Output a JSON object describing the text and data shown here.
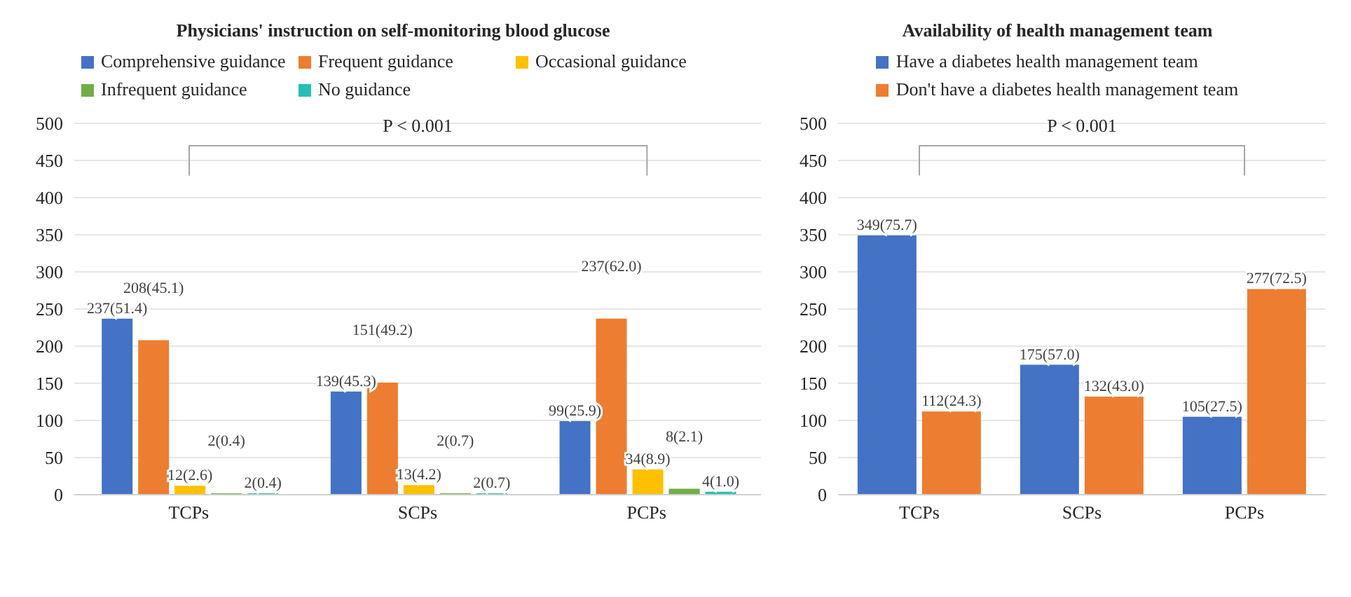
{
  "chart_data": [
    {
      "type": "bar",
      "title": "Physicians' instruction on self-monitoring blood glucose",
      "categories": [
        "TCPs",
        "SCPs",
        "PCPs"
      ],
      "series": [
        {
          "name": "Comprehensive guidance",
          "color": "#4472c4",
          "values": [
            237,
            139,
            99
          ],
          "value_labels": [
            "237(51.4)",
            "139(45.3)",
            "99(25.9)"
          ]
        },
        {
          "name": "Frequent guidance",
          "color": "#ed7d31",
          "values": [
            208,
            151,
            237
          ],
          "value_labels": [
            "208(45.1)",
            "151(49.2)",
            "237(62.0)"
          ]
        },
        {
          "name": "Occasional guidance",
          "color": "#ffc000",
          "values": [
            12,
            13,
            34
          ],
          "value_labels": [
            "12(2.6)",
            "13(4.2)",
            "34(8.9)"
          ]
        },
        {
          "name": "Infrequent guidance",
          "color": "#70ad47",
          "values": [
            2,
            2,
            8
          ],
          "value_labels": [
            "2(0.4)",
            "2(0.7)",
            "8(2.1)"
          ]
        },
        {
          "name": "No guidance",
          "color": "#26bfb5",
          "values": [
            2,
            2,
            4
          ],
          "value_labels": [
            "2(0.4)",
            "2(0.7)",
            "4(1.0)"
          ]
        }
      ],
      "ylim": [
        0,
        500
      ],
      "yticks": [
        0,
        50,
        100,
        150,
        200,
        250,
        300,
        350,
        400,
        450,
        500
      ],
      "grid": "y",
      "legend": "top",
      "annotations": [
        "P < 0.001"
      ]
    },
    {
      "type": "bar",
      "title": "Availability of health management team",
      "categories": [
        "TCPs",
        "SCPs",
        "PCPs"
      ],
      "series": [
        {
          "name": "Have a diabetes health management team",
          "color": "#4472c4",
          "values": [
            349,
            175,
            105
          ],
          "value_labels": [
            "349(75.7)",
            "175(57.0)",
            "105(27.5)"
          ]
        },
        {
          "name": "Don't have a diabetes health management team",
          "color": "#ed7d31",
          "values": [
            112,
            132,
            277
          ],
          "value_labels": [
            "112(24.3)",
            "132(43.0)",
            "277(72.5)"
          ]
        }
      ],
      "ylim": [
        0,
        500
      ],
      "yticks": [
        0,
        50,
        100,
        150,
        200,
        250,
        300,
        350,
        400,
        450,
        500
      ],
      "grid": "y",
      "legend": "top",
      "annotations": [
        "P < 0.001"
      ]
    }
  ]
}
